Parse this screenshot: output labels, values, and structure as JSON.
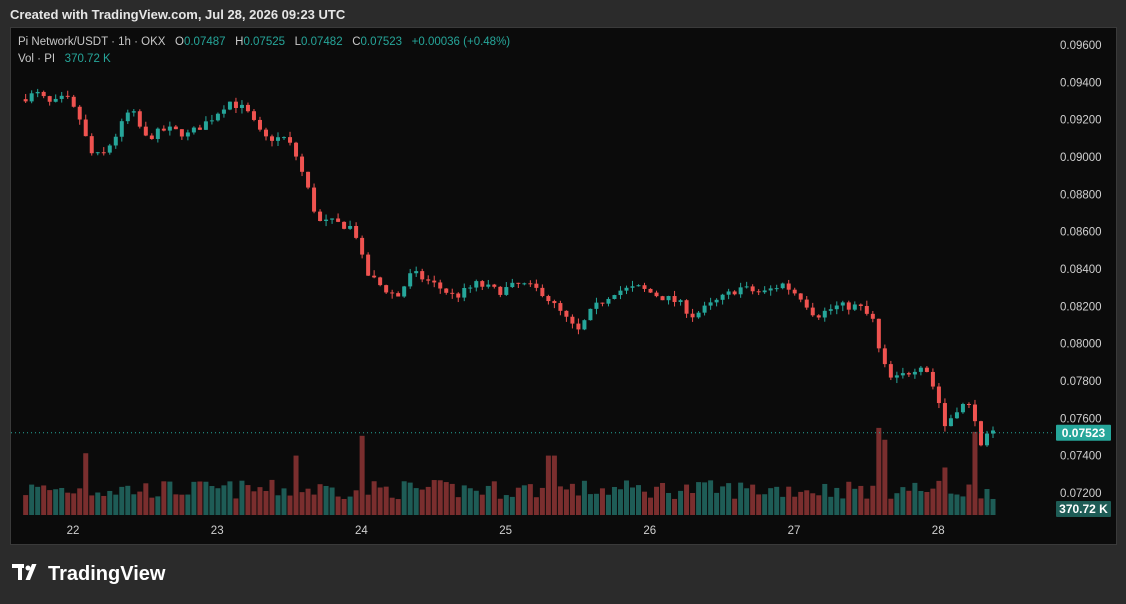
{
  "watermark": "Created with TradingView.com, Jul 28, 2026 09:23 UTC",
  "header": {
    "symbol": "Pi Network/USDT · 1h · OKX",
    "o_label": "O",
    "o_value": "0.07487",
    "h_label": "H",
    "h_value": "0.07525",
    "l_label": "L",
    "l_value": "0.07482",
    "c_label": "C",
    "c_value": "0.07523",
    "change": "+0.00036 (+0.48%)"
  },
  "volume_header": {
    "label": "Vol · PI",
    "value": "370.72 K"
  },
  "logo_text": "TradingView",
  "colors": {
    "up": "#26a69a",
    "down": "#ef5350",
    "vol_up": "#1e5c56",
    "vol_down": "#7a2e2e",
    "background": "#0b0b0b",
    "axis_text": "#d0d0d0"
  },
  "chart_data": {
    "type": "candlestick",
    "y_ticks": [
      "0.09600",
      "0.09400",
      "0.09200",
      "0.09000",
      "0.08800",
      "0.08600",
      "0.08400",
      "0.08200",
      "0.08000",
      "0.07800",
      "0.07600",
      "0.07400",
      "0.07200"
    ],
    "ylim": [
      0.0708,
      0.0972
    ],
    "x_ticks": [
      "22",
      "23",
      "24",
      "25",
      "26",
      "27",
      "28"
    ],
    "last_price_label": "0.07523",
    "last_price": 0.07523,
    "last_volume_label": "370.72 K",
    "close_path": [
      {
        "day": 21.63,
        "close": 0.0931
      },
      {
        "day": 21.75,
        "close": 0.0934
      },
      {
        "day": 21.85,
        "close": 0.0928
      },
      {
        "day": 21.95,
        "close": 0.0932
      },
      {
        "day": 22.05,
        "close": 0.092
      },
      {
        "day": 22.12,
        "close": 0.0902
      },
      {
        "day": 22.2,
        "close": 0.09
      },
      {
        "day": 22.3,
        "close": 0.0912
      },
      {
        "day": 22.4,
        "close": 0.0926
      },
      {
        "day": 22.5,
        "close": 0.091
      },
      {
        "day": 22.65,
        "close": 0.0915
      },
      {
        "day": 22.8,
        "close": 0.0912
      },
      {
        "day": 22.95,
        "close": 0.092
      },
      {
        "day": 23.08,
        "close": 0.093
      },
      {
        "day": 23.2,
        "close": 0.0925
      },
      {
        "day": 23.32,
        "close": 0.091
      },
      {
        "day": 23.48,
        "close": 0.091
      },
      {
        "day": 23.55,
        "close": 0.09
      },
      {
        "day": 23.62,
        "close": 0.0885
      },
      {
        "day": 23.7,
        "close": 0.0865
      },
      {
        "day": 23.8,
        "close": 0.0865
      },
      {
        "day": 23.95,
        "close": 0.0862
      },
      {
        "day": 24.03,
        "close": 0.0838
      },
      {
        "day": 24.15,
        "close": 0.083
      },
      {
        "day": 24.25,
        "close": 0.0825
      },
      {
        "day": 24.35,
        "close": 0.0838
      },
      {
        "day": 24.5,
        "close": 0.0832
      },
      {
        "day": 24.65,
        "close": 0.0825
      },
      {
        "day": 24.8,
        "close": 0.0832
      },
      {
        "day": 24.95,
        "close": 0.0828
      },
      {
        "day": 25.1,
        "close": 0.0832
      },
      {
        "day": 25.25,
        "close": 0.0828
      },
      {
        "day": 25.4,
        "close": 0.0815
      },
      {
        "day": 25.5,
        "close": 0.0806
      },
      {
        "day": 25.6,
        "close": 0.0818
      },
      {
        "day": 25.75,
        "close": 0.0828
      },
      {
        "day": 25.92,
        "close": 0.083
      },
      {
        "day": 26.05,
        "close": 0.0826
      },
      {
        "day": 26.2,
        "close": 0.0822
      },
      {
        "day": 26.3,
        "close": 0.0815
      },
      {
        "day": 26.45,
        "close": 0.0822
      },
      {
        "day": 26.62,
        "close": 0.083
      },
      {
        "day": 26.78,
        "close": 0.0827
      },
      {
        "day": 26.92,
        "close": 0.0832
      },
      {
        "day": 27.05,
        "close": 0.0825
      },
      {
        "day": 27.15,
        "close": 0.0815
      },
      {
        "day": 27.3,
        "close": 0.082
      },
      {
        "day": 27.45,
        "close": 0.082
      },
      {
        "day": 27.55,
        "close": 0.0812
      },
      {
        "day": 27.6,
        "close": 0.0792
      },
      {
        "day": 27.68,
        "close": 0.078
      },
      {
        "day": 27.8,
        "close": 0.0785
      },
      {
        "day": 27.9,
        "close": 0.079
      },
      {
        "day": 28.0,
        "close": 0.077
      },
      {
        "day": 28.05,
        "close": 0.0755
      },
      {
        "day": 28.12,
        "close": 0.0765
      },
      {
        "day": 28.2,
        "close": 0.0768
      },
      {
        "day": 28.26,
        "close": 0.076
      },
      {
        "day": 28.3,
        "close": 0.0742
      },
      {
        "day": 28.35,
        "close": 0.0752
      },
      {
        "day": 28.38,
        "close": 0.0752
      }
    ],
    "volume_spikes": [
      {
        "day": 22.08,
        "level": 0.78
      },
      {
        "day": 23.55,
        "level": 0.75
      },
      {
        "day": 24.0,
        "level": 1.0
      },
      {
        "day": 25.32,
        "level": 0.75
      },
      {
        "day": 27.58,
        "level": 1.1
      },
      {
        "day": 27.62,
        "level": 0.95
      },
      {
        "day": 28.05,
        "level": 0.6
      },
      {
        "day": 28.25,
        "level": 1.05
      }
    ]
  }
}
